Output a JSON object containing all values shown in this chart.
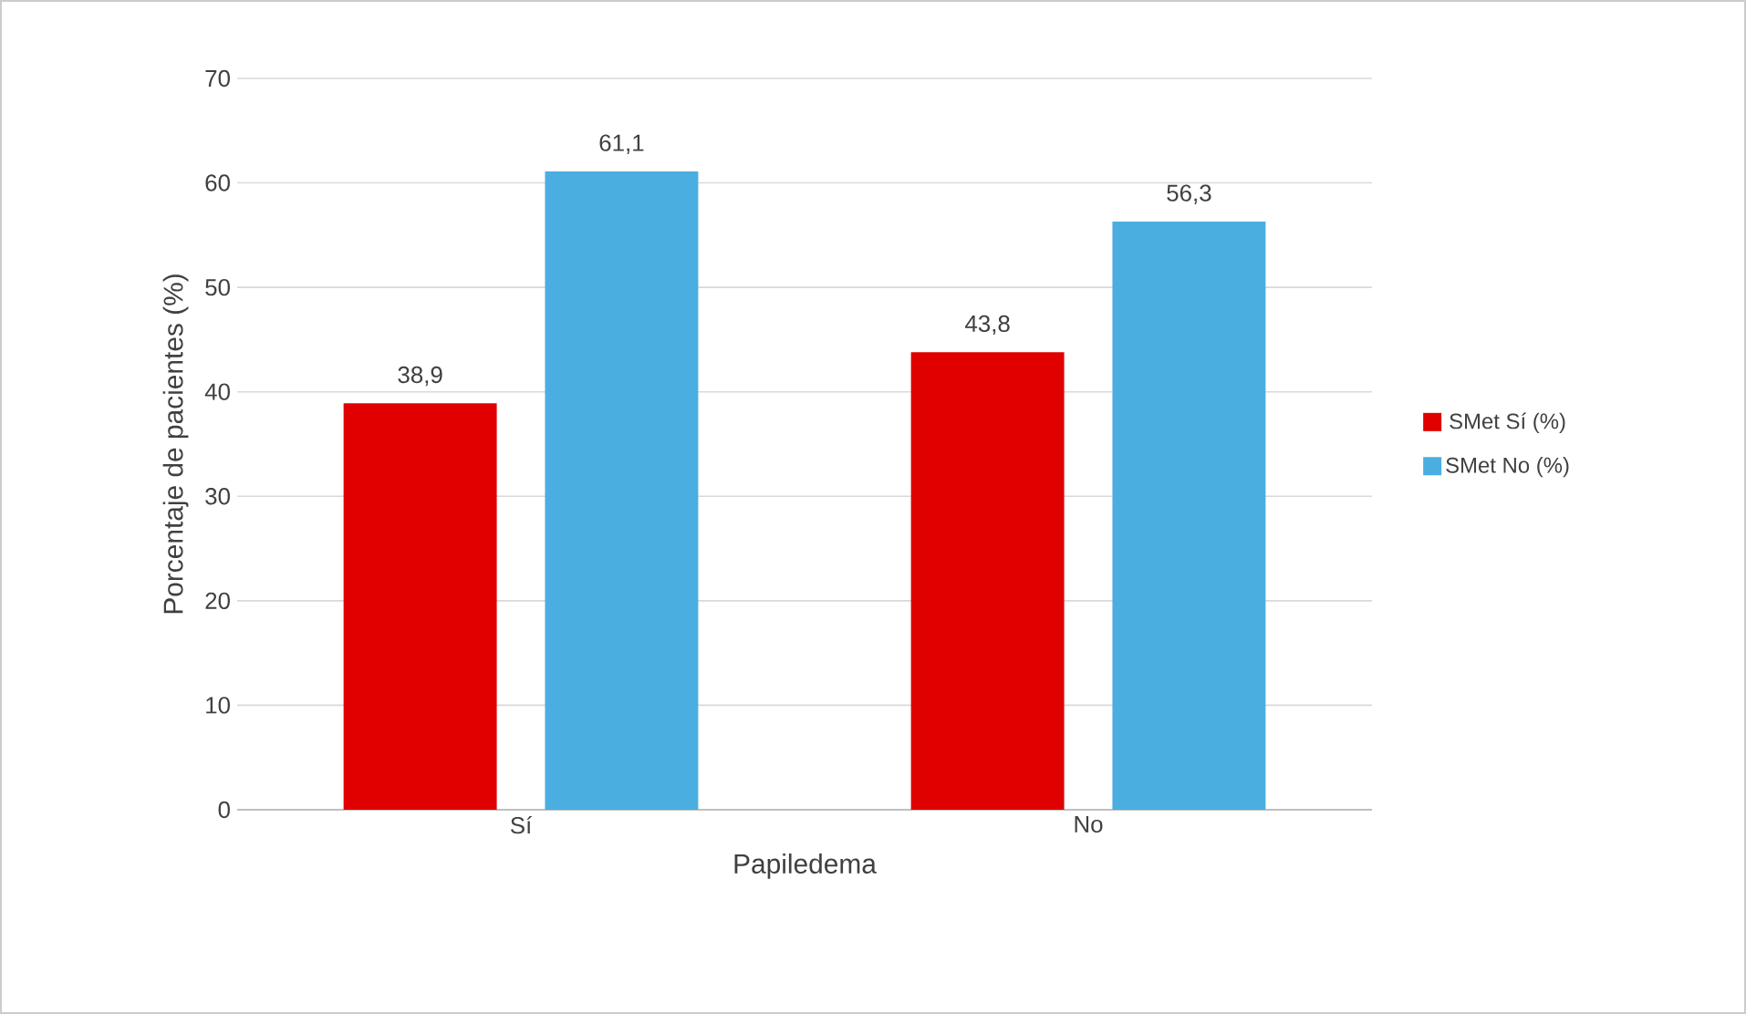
{
  "chart_data": {
    "type": "bar",
    "xlabel": "Papiledema",
    "ylabel": "Porcentaje de pacientes  (%)",
    "categories": [
      "Sí",
      "No"
    ],
    "series": [
      {
        "name": "SMet Sí (%)",
        "color": "#e00000",
        "values": [
          38.9,
          43.8
        ],
        "value_labels": [
          "38,9",
          "43,8"
        ]
      },
      {
        "name": "SMet No  (%)",
        "color": "#4aaee0",
        "values": [
          61.1,
          56.3
        ],
        "value_labels": [
          "61,1",
          "56,3"
        ]
      }
    ],
    "ylim": [
      0,
      70
    ],
    "yticks": [
      0,
      10,
      20,
      30,
      40,
      50,
      60,
      70
    ],
    "grid": "y",
    "legend": "right"
  }
}
